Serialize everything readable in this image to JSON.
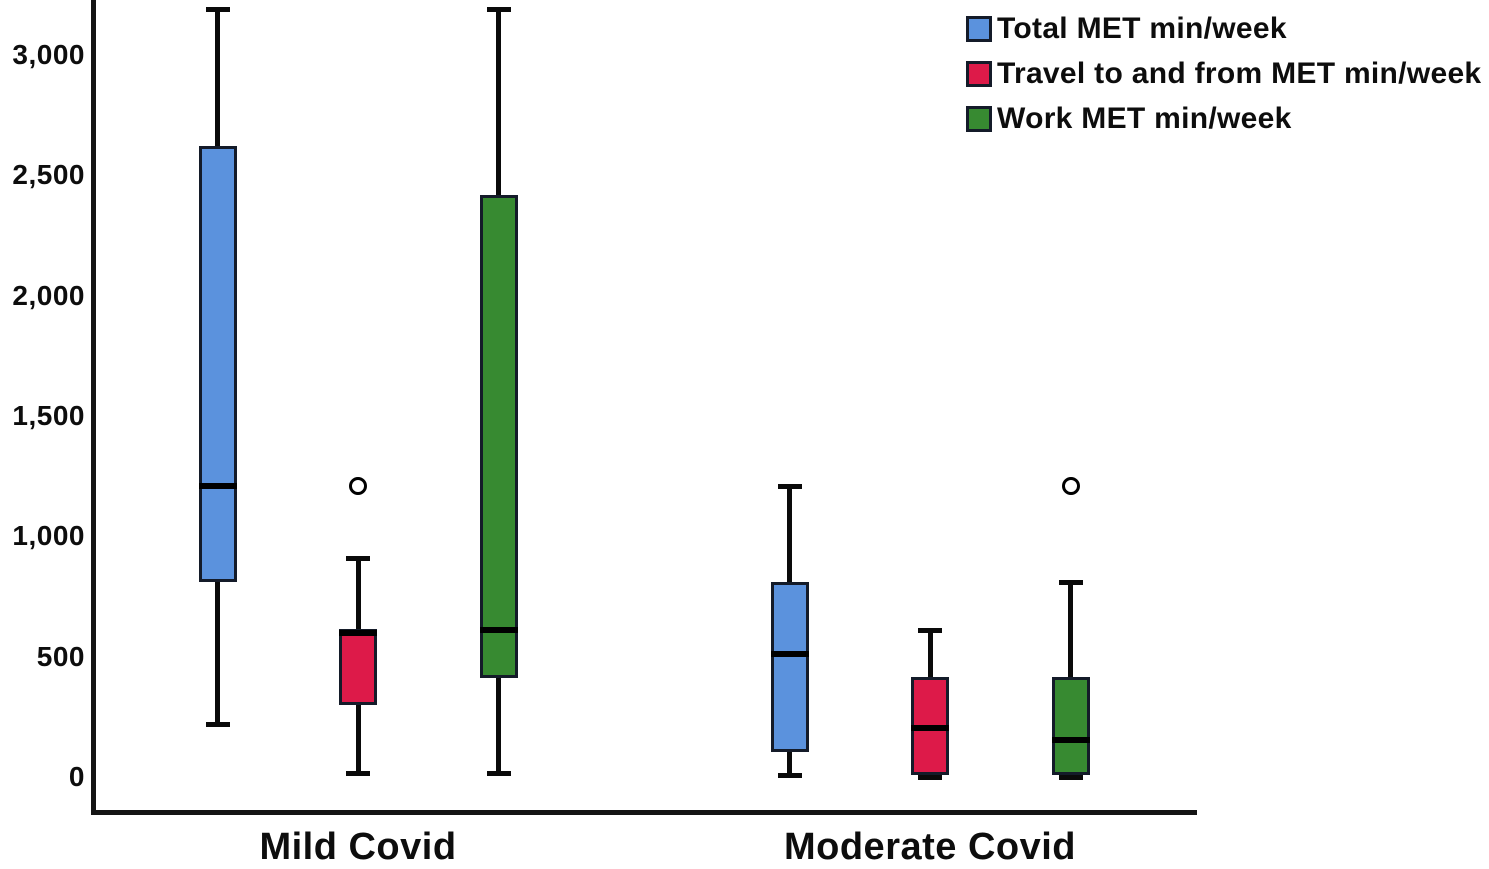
{
  "chart_data": {
    "type": "boxplot",
    "title": "",
    "xlabel": "",
    "ylabel": "",
    "categories": [
      "Mild Covid",
      "Moderate Covid"
    ],
    "y_axis": {
      "min": 0,
      "max_visible": 3200,
      "gridlines": false,
      "ticks": [
        {
          "label": "3,000",
          "value": 3000
        },
        {
          "label": "2,500",
          "value": 2500
        },
        {
          "label": "2,000",
          "value": 2000
        },
        {
          "label": "1,500",
          "value": 1500
        },
        {
          "label": "1,000",
          "value": 1000
        },
        {
          "label": "500",
          "value": 500
        },
        {
          "label": "0",
          "value": 0
        }
      ]
    },
    "legend": {
      "position": "top-right",
      "entries": [
        {
          "label": "Total MET min/week",
          "color": "#5B92DD"
        },
        {
          "label": "Travel to and from MET min/week",
          "color": "#DD1A49"
        },
        {
          "label": "Work MET min/week",
          "color": "#378A31"
        }
      ]
    },
    "series": [
      {
        "name": "Total MET min/week",
        "color": "#5B92DD",
        "boxes": [
          {
            "category": "Mild Covid",
            "min": 220,
            "q1": 810,
            "median": 1210,
            "q3": 2620,
            "max": 3190,
            "outliers": []
          },
          {
            "category": "Moderate Covid",
            "min": 10,
            "q1": 105,
            "median": 510,
            "q3": 810,
            "max": 1210,
            "outliers": []
          }
        ]
      },
      {
        "name": "Travel to and from MET min/week",
        "color": "#DD1A49",
        "boxes": [
          {
            "category": "Mild Covid",
            "min": 15,
            "q1": 300,
            "median": 600,
            "q3": 615,
            "max": 910,
            "outliers": [
              1210
            ]
          },
          {
            "category": "Moderate Covid",
            "min": 0,
            "q1": 10,
            "median": 205,
            "q3": 415,
            "max": 610,
            "outliers": []
          }
        ]
      },
      {
        "name": "Work MET min/week",
        "color": "#378A31",
        "boxes": [
          {
            "category": "Mild Covid",
            "min": 15,
            "q1": 410,
            "median": 610,
            "q3": 2420,
            "max": 3190,
            "outliers": []
          },
          {
            "category": "Moderate Covid",
            "min": 0,
            "q1": 10,
            "median": 155,
            "q3": 415,
            "max": 810,
            "outliers": [
              1210
            ]
          }
        ]
      }
    ],
    "colors": {
      "background": "#ffffff",
      "axis": "#141414",
      "box_border": "#141b29",
      "median": "#000000",
      "outlier_stroke": "#000000",
      "text": "#0d0d0d"
    }
  }
}
